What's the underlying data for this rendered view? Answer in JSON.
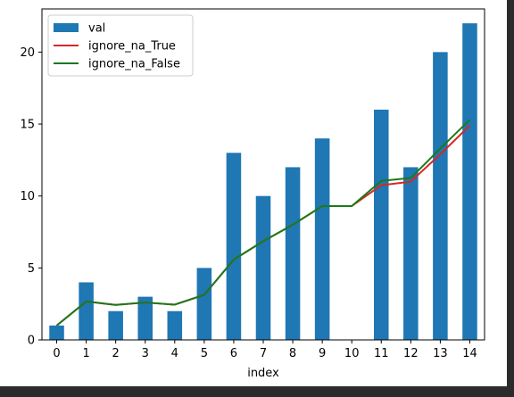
{
  "chart_data": {
    "type": "bar",
    "title": "",
    "xlabel": "index",
    "ylabel": "",
    "categories": [
      "0",
      "1",
      "2",
      "3",
      "4",
      "5",
      "6",
      "7",
      "8",
      "9",
      "10",
      "11",
      "12",
      "13",
      "14"
    ],
    "ylim": [
      0,
      23
    ],
    "yticks": [
      0,
      5,
      10,
      15,
      20
    ],
    "grid": false,
    "legend": "top-left",
    "series": [
      {
        "name": "val",
        "kind": "bar",
        "color": "#1f77b4",
        "values": [
          1,
          4,
          2,
          3,
          2,
          5,
          13,
          10,
          12,
          14,
          null,
          16,
          12,
          20,
          22
        ]
      },
      {
        "name": "ignore_na_True",
        "kind": "line",
        "color": "#d62728",
        "values": [
          1.0,
          2.67,
          2.43,
          2.6,
          2.45,
          3.13,
          5.58,
          6.86,
          8.0,
          9.3,
          9.3,
          10.75,
          11.0,
          12.9,
          14.9
        ]
      },
      {
        "name": "ignore_na_False",
        "kind": "line",
        "color": "#1a7a1a",
        "values": [
          1.0,
          2.67,
          2.43,
          2.6,
          2.45,
          3.13,
          5.58,
          6.86,
          8.0,
          9.3,
          9.3,
          11.05,
          11.25,
          13.3,
          15.3
        ]
      }
    ]
  }
}
